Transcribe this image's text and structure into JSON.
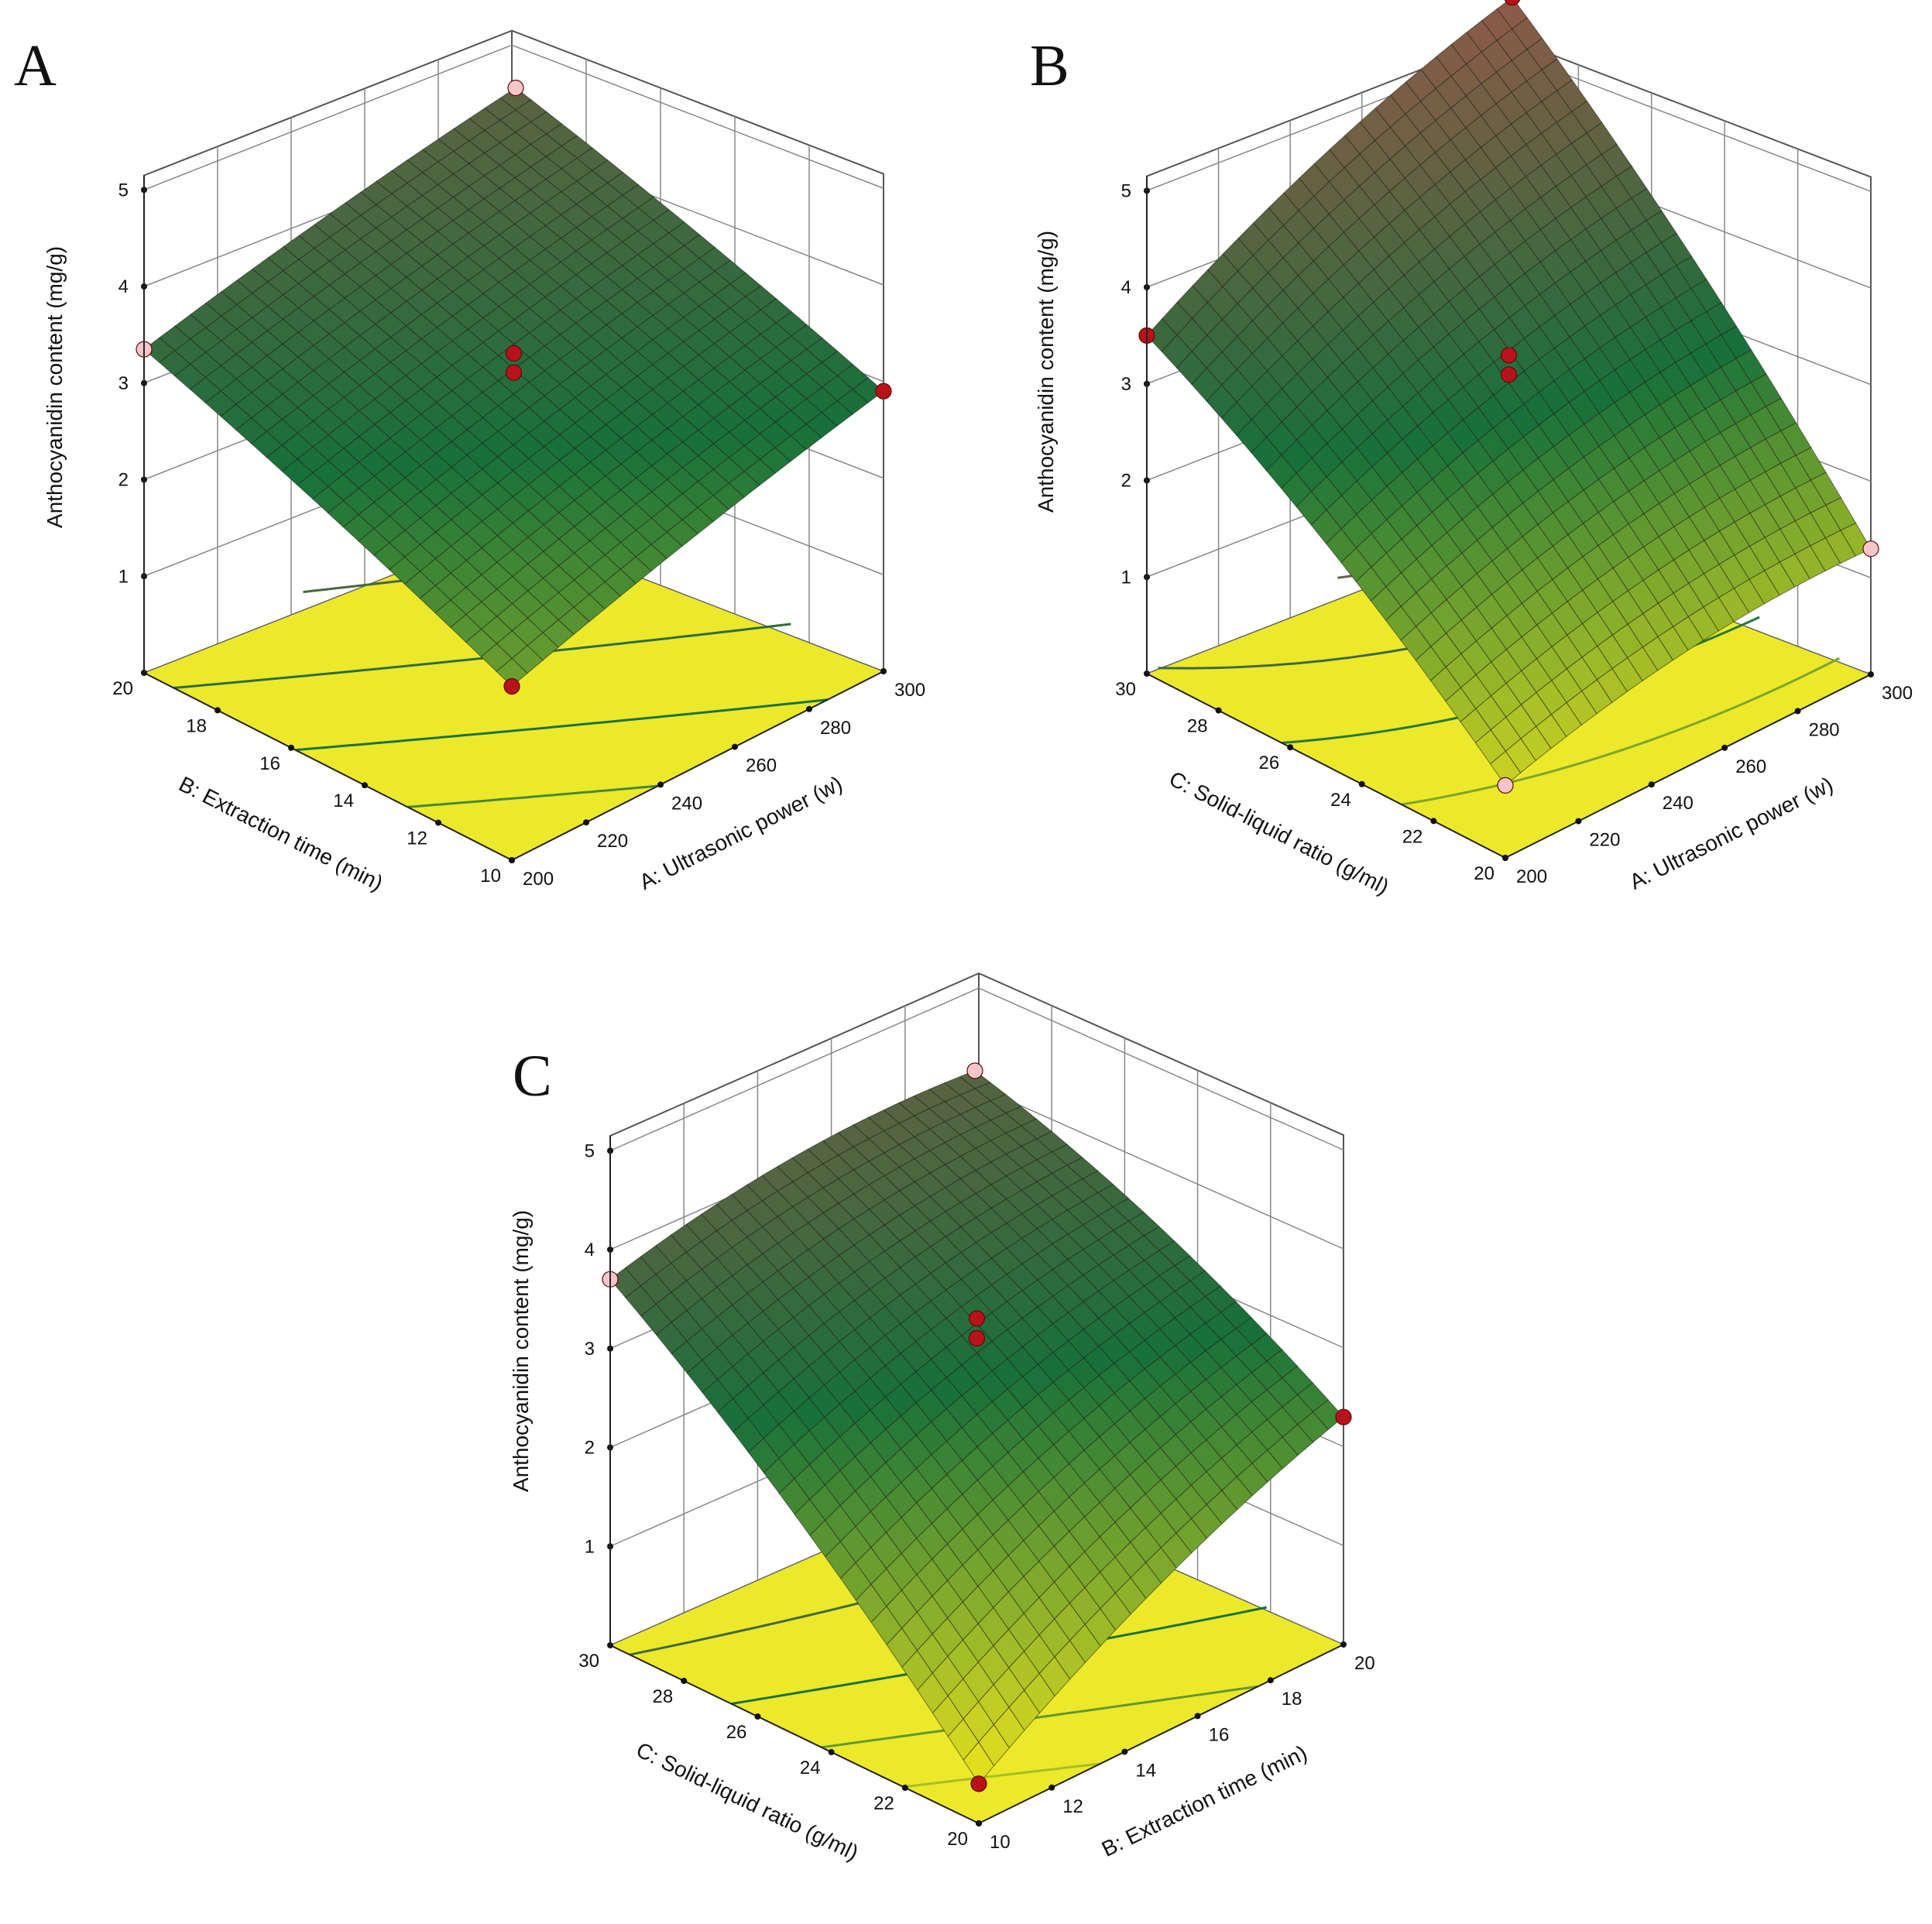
{
  "colors": {
    "surface_low": "#e3e01f",
    "surface_mid": "#17703a",
    "surface_high": "#8e5a48",
    "floor": "#ece92a",
    "design_point_above": "#b8131a",
    "design_point_below": "#f7c6c9"
  },
  "chart_data": [
    {
      "panel": "A",
      "type": "surface",
      "grid": true,
      "xlabel": "A: Ultrasonic power (w)",
      "ylabel": "B: Extraction time (min)",
      "zlabel": "Anthocyanidin content (mg/g)",
      "xlim": [
        200,
        300
      ],
      "ylim": [
        10,
        20
      ],
      "zlim": [
        0,
        5
      ],
      "x_ticks": [
        "200",
        "220",
        "240",
        "260",
        "280",
        "300"
      ],
      "y_ticks": [
        "10",
        "12",
        "14",
        "16",
        "18",
        "20"
      ],
      "z_ticks": [
        "1",
        "2",
        "3",
        "4",
        "5"
      ],
      "corner_values": {
        "x_low_y_low": 1.8,
        "x_high_y_low": 2.9,
        "x_low_y_high": 3.35,
        "x_high_y_high": 4.1
      },
      "curvature": 0.1,
      "design_points": [
        {
          "x": 200,
          "y": 10,
          "z": 1.8,
          "position": "above"
        },
        {
          "x": 300,
          "y": 10,
          "z": 2.9,
          "position": "above"
        },
        {
          "x": 200,
          "y": 20,
          "z": 3.35,
          "position": "below"
        },
        {
          "x": 300,
          "y": 20,
          "z": 4.1,
          "position": "below"
        },
        {
          "x": 250,
          "y": 15,
          "z": 3.1,
          "position": "above"
        },
        {
          "x": 250,
          "y": 15,
          "z": 3.3,
          "position": "above"
        }
      ]
    },
    {
      "panel": "B",
      "type": "surface",
      "grid": true,
      "xlabel": "A: Ultrasonic power (w)",
      "ylabel": "C: Solid-liquid ratio (g/ml)",
      "zlabel": "Anthocyanidin content (mg/g)",
      "xlim": [
        200,
        300
      ],
      "ylim": [
        20,
        30
      ],
      "zlim": [
        0,
        5
      ],
      "x_ticks": [
        "200",
        "220",
        "240",
        "260",
        "280",
        "300"
      ],
      "y_ticks": [
        "20",
        "22",
        "24",
        "26",
        "28",
        "30"
      ],
      "z_ticks": [
        "1",
        "2",
        "3",
        "4",
        "5"
      ],
      "corner_values": {
        "x_low_y_low": 0.75,
        "x_high_y_low": 1.3,
        "x_low_y_high": 3.5,
        "x_high_y_high": 5.1
      },
      "curvature": 0.35,
      "design_points": [
        {
          "x": 200,
          "y": 20,
          "z": 0.75,
          "position": "below"
        },
        {
          "x": 300,
          "y": 20,
          "z": 1.3,
          "position": "below"
        },
        {
          "x": 200,
          "y": 30,
          "z": 3.5,
          "position": "above"
        },
        {
          "x": 300,
          "y": 30,
          "z": 5.1,
          "position": "above"
        },
        {
          "x": 250,
          "y": 25,
          "z": 3.1,
          "position": "above"
        },
        {
          "x": 250,
          "y": 25,
          "z": 3.3,
          "position": "above"
        }
      ]
    },
    {
      "panel": "C",
      "type": "surface",
      "grid": true,
      "xlabel": "B: Extraction time (min)",
      "ylabel": "C: Solid-liquid ratio (g/ml)",
      "zlabel": "Anthocyanidin content (mg/g)",
      "xlim": [
        10,
        20
      ],
      "ylim": [
        20,
        30
      ],
      "zlim": [
        0,
        5
      ],
      "x_ticks": [
        "10",
        "12",
        "14",
        "16",
        "18",
        "20"
      ],
      "y_ticks": [
        "20",
        "22",
        "24",
        "26",
        "28",
        "30"
      ],
      "z_ticks": [
        "1",
        "2",
        "3",
        "4",
        "5"
      ],
      "corner_values": {
        "x_low_y_low": 0.4,
        "x_high_y_low": 2.3,
        "x_low_y_high": 3.7,
        "x_high_y_high": 4.0
      },
      "curvature": 0.35,
      "design_points": [
        {
          "x": 10,
          "y": 20,
          "z": 0.4,
          "position": "above"
        },
        {
          "x": 20,
          "y": 20,
          "z": 2.3,
          "position": "above"
        },
        {
          "x": 10,
          "y": 30,
          "z": 3.7,
          "position": "below"
        },
        {
          "x": 20,
          "y": 30,
          "z": 4.0,
          "position": "below"
        },
        {
          "x": 15,
          "y": 25,
          "z": 3.1,
          "position": "above"
        },
        {
          "x": 15,
          "y": 25,
          "z": 3.3,
          "position": "above"
        }
      ]
    }
  ]
}
